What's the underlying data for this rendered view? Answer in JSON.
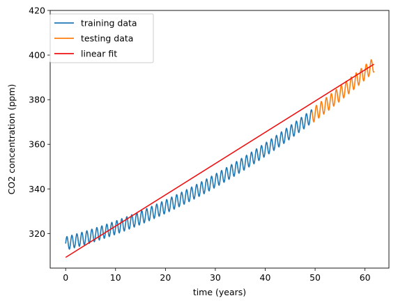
{
  "chart_data": {
    "type": "line",
    "xlabel": "time (years)",
    "ylabel": "CO2 concentration (ppm)",
    "xlim": [
      -3.1,
      64.8
    ],
    "ylim": [
      304.5,
      420
    ],
    "xticks": [
      0,
      10,
      20,
      30,
      40,
      50,
      60
    ],
    "yticks": [
      320,
      340,
      360,
      380,
      400,
      420
    ],
    "grid": false,
    "legend_position": "top-left",
    "series": [
      {
        "name": "training data",
        "color": "#1f77b4",
        "style": "seasonal",
        "x_range": [
          0.0,
          49.4
        ],
        "trend": {
          "a": 315.5,
          "b": 0.6,
          "c": 0.0113
        },
        "seasonal_amplitude": 3.0,
        "period": 1.0
      },
      {
        "name": "testing data",
        "color": "#ff7f0e",
        "style": "seasonal",
        "x_range": [
          49.4,
          61.8
        ],
        "trend": {
          "a": 315.5,
          "b": 0.6,
          "c": 0.0113
        },
        "seasonal_amplitude": 3.3,
        "period": 1.0
      },
      {
        "name": "linear fit",
        "color": "#ee1111",
        "style": "line",
        "x": [
          0.0,
          61.8
        ],
        "y": [
          309.3,
          395.9
        ]
      }
    ]
  }
}
